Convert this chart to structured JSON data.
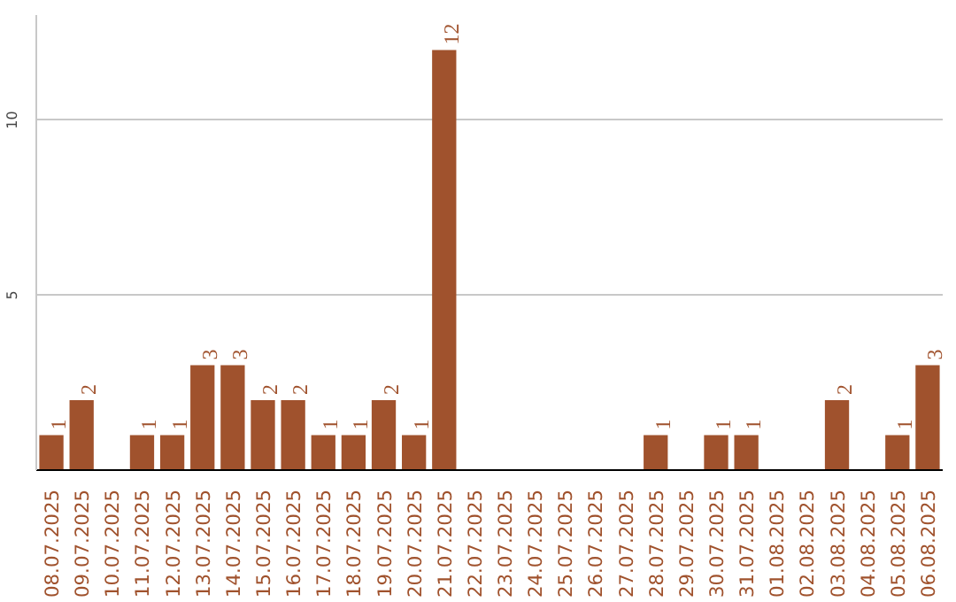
{
  "chart_data": {
    "type": "bar",
    "categories": [
      "08.07.2025",
      "09.07.2025",
      "10.07.2025",
      "11.07.2025",
      "12.07.2025",
      "13.07.2025",
      "14.07.2025",
      "15.07.2025",
      "16.07.2025",
      "17.07.2025",
      "18.07.2025",
      "19.07.2025",
      "20.07.2025",
      "21.07.2025",
      "22.07.2025",
      "23.07.2025",
      "24.07.2025",
      "25.07.2025",
      "26.07.2025",
      "27.07.2025",
      "28.07.2025",
      "29.07.2025",
      "30.07.2025",
      "31.07.2025",
      "01.08.2025",
      "02.08.2025",
      "03.08.2025",
      "04.08.2025",
      "05.08.2025",
      "06.08.2025"
    ],
    "values": [
      1,
      2,
      0,
      1,
      1,
      3,
      3,
      2,
      2,
      1,
      1,
      2,
      1,
      12,
      0,
      0,
      0,
      0,
      0,
      0,
      1,
      0,
      1,
      1,
      0,
      0,
      2,
      0,
      1,
      3
    ],
    "value_labels": [
      "1",
      "2",
      null,
      "1",
      "1",
      "3",
      "3",
      "2",
      "2",
      "1",
      "1",
      "2",
      "1",
      "12",
      null,
      null,
      null,
      null,
      null,
      null,
      "1",
      null,
      "1",
      "1",
      null,
      null,
      "2",
      null,
      "1",
      "3"
    ],
    "color": "#a0522d",
    "ylim": [
      0,
      13
    ],
    "yticks": [
      5,
      10
    ],
    "grid": "y"
  }
}
